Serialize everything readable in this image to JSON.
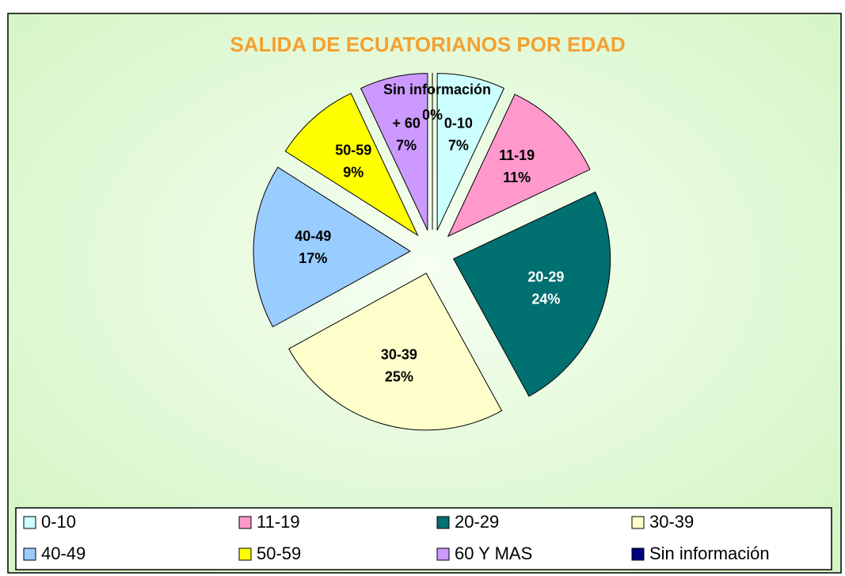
{
  "chart_data": {
    "type": "pie",
    "title": "SALIDA DE ECUATORIANOS POR EDAD",
    "categories": [
      "0-10",
      "11-19",
      "20-29",
      "30-39",
      "40-49",
      "50-59",
      "60 Y MAS",
      "Sin información"
    ],
    "slice_labels": [
      "0-10",
      "11-19",
      "20-29",
      "30-39",
      "40-49",
      "50-59",
      "+ 60",
      "Sin información"
    ],
    "values": [
      7,
      11,
      24,
      25,
      17,
      9,
      7,
      0
    ],
    "value_labels": [
      "7%",
      "11%",
      "24%",
      "25%",
      "17%",
      "9%",
      "7%",
      "0%"
    ],
    "colors": [
      "#ccffff",
      "#ff99cc",
      "#007070",
      "#ffffcc",
      "#99ccff",
      "#ffff00",
      "#cc99ff",
      "#000080"
    ],
    "legend": "bottom"
  }
}
